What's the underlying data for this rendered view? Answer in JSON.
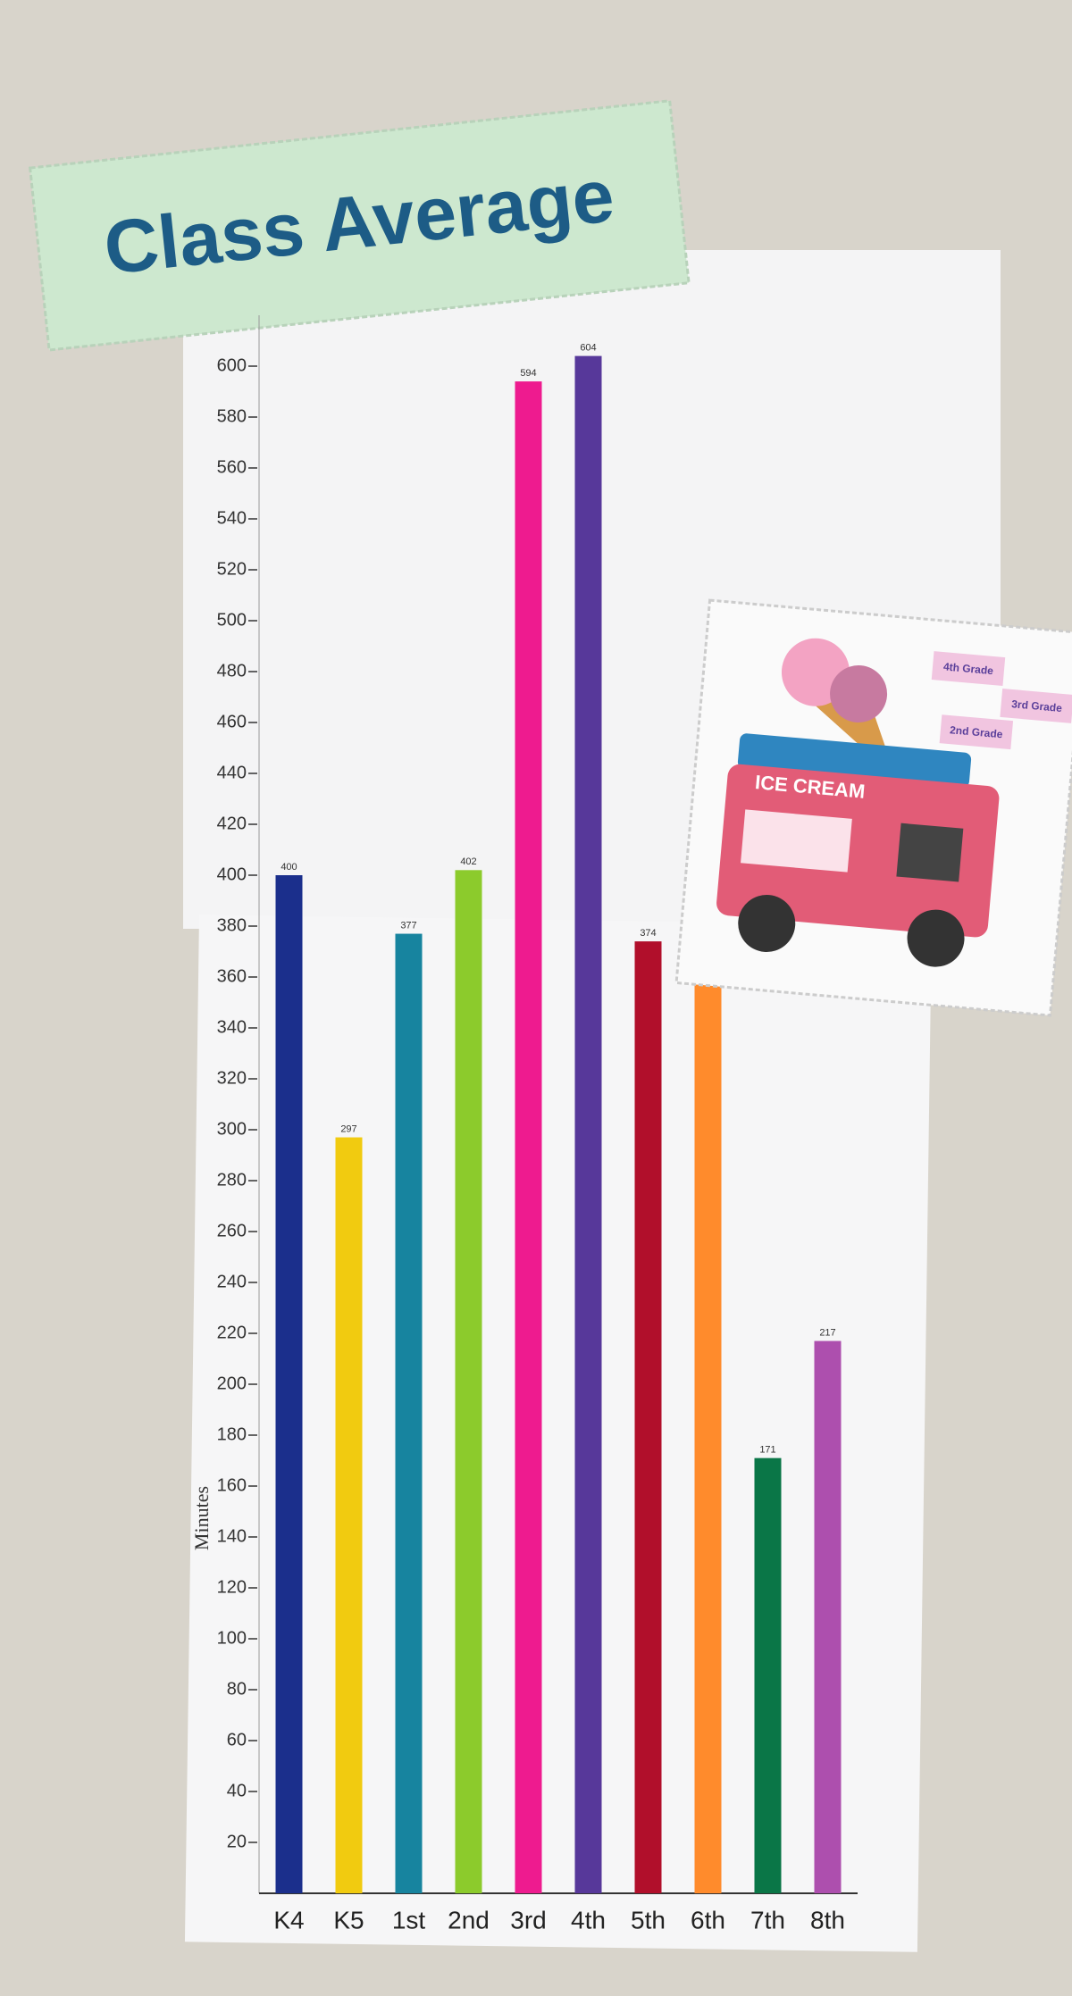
{
  "chart_data": {
    "type": "bar",
    "title": "Class Average",
    "y_label": "Minutes",
    "categories": [
      "K4",
      "K5",
      "1st",
      "2nd",
      "3rd",
      "4th",
      "5th",
      "6th",
      "7th",
      "8th"
    ],
    "values": [
      400,
      297,
      377,
      402,
      594,
      604,
      374,
      357,
      171,
      217
    ],
    "colors": [
      "#1b2f8c",
      "#f1cb10",
      "#17849f",
      "#8ccb2c",
      "#ee1b8f",
      "#57389a",
      "#b10f2b",
      "#ff8b2c",
      "#0a7647",
      "#ad4fae"
    ],
    "ylim": [
      0,
      620
    ],
    "yticks": [
      20,
      40,
      60,
      80,
      100,
      120,
      140,
      160,
      180,
      200,
      220,
      240,
      260,
      280,
      300,
      320,
      340,
      360,
      380,
      400,
      420,
      440,
      460,
      480,
      500,
      520,
      540,
      560,
      580,
      600
    ],
    "grid": false
  },
  "sticker": {
    "sign": "ICE CREAM",
    "tags": [
      "4th Grade",
      "3rd Grade",
      "2nd Grade"
    ]
  }
}
